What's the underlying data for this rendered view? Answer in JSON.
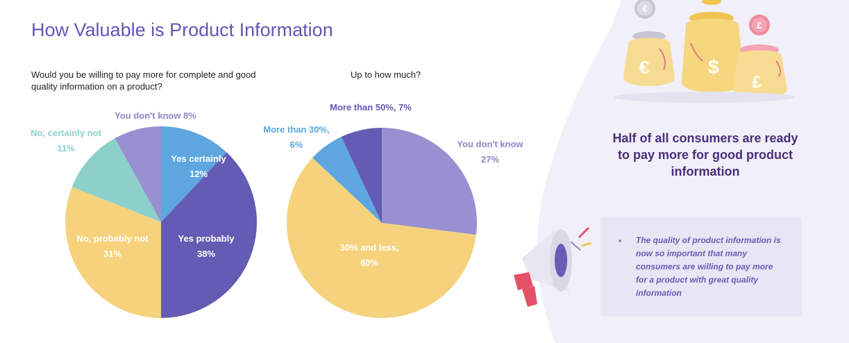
{
  "page": {
    "title": "How Valuable is Product Information"
  },
  "chart_data": [
    {
      "type": "pie",
      "title": "Would you be willing to pay more for complete and good quality information on a product?",
      "slices": [
        {
          "label": "Yes certainly",
          "value_text": "12%",
          "value": 12,
          "color": "#5da6e0"
        },
        {
          "label": "Yes probably",
          "value_text": "38%",
          "value": 38,
          "color": "#645bb5"
        },
        {
          "label": "No, probably not",
          "value_text": "31%",
          "value": 31,
          "color": "#f6d27d"
        },
        {
          "label": "No, certainly not",
          "value_text": "11%",
          "value": 11,
          "color": "#8dd0cb"
        },
        {
          "label": "You don't know",
          "value_text": "8%",
          "value": 8,
          "color": "#9890d0"
        }
      ]
    },
    {
      "type": "pie",
      "title": "Up to how much?",
      "slices": [
        {
          "label": "You don't know",
          "value_text": "27%",
          "value": 27,
          "color": "#9890d0"
        },
        {
          "label": "30% and less,",
          "value_text": "60%",
          "value": 60,
          "color": "#f6d27d"
        },
        {
          "label": "More than 30%,",
          "value_text": "6%",
          "value": 6,
          "color": "#5da6e0"
        },
        {
          "label": "More than 50%,",
          "value_text": "7%",
          "value": 7,
          "color": "#645bb5"
        }
      ]
    }
  ],
  "sidebar": {
    "headline": "Half of all consumers are ready to pay more for good product information",
    "note": "The quality of product information is now so important that many consumers are willing to pay more for a product with great quality information",
    "bullet": "•",
    "coin_symbols": [
      "€",
      "£",
      "€",
      "$",
      "£"
    ]
  }
}
